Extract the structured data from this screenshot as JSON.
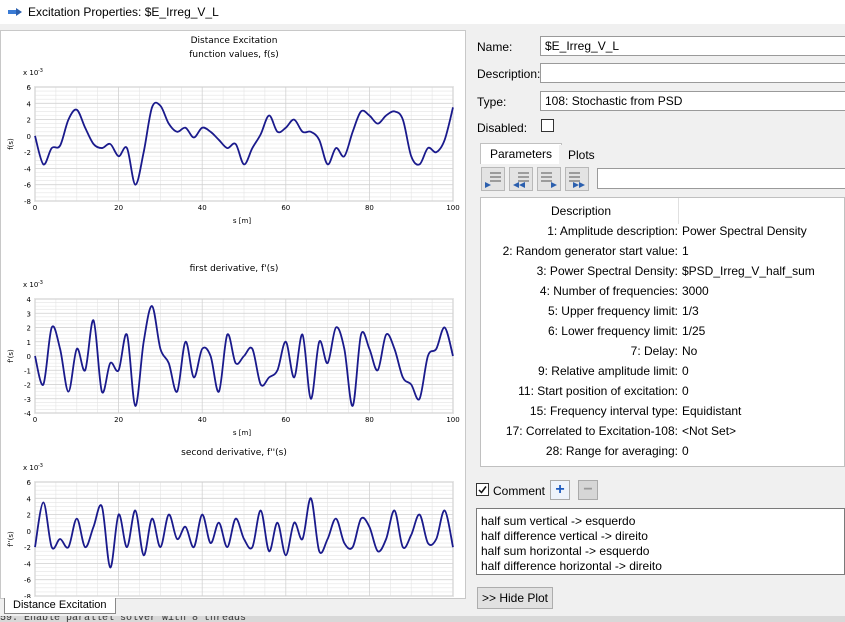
{
  "window": {
    "title": "Excitation Properties: $E_Irreg_V_L"
  },
  "form": {
    "name_label": "Name:",
    "name_value": "$E_Irreg_V_L",
    "description_label": "Description:",
    "description_value": "",
    "type_label": "Type:",
    "type_value": "108: Stochastic from PSD",
    "disabled_label": "Disabled:"
  },
  "tabs": [
    {
      "label": "Parameters"
    },
    {
      "label": "Plots"
    }
  ],
  "params": {
    "header": "Description",
    "rows": [
      {
        "name": "1: Amplitude description:",
        "value": "Power Spectral Density"
      },
      {
        "name": "2: Random generator start value:",
        "value": "1"
      },
      {
        "name": "3: Power Spectral Density:",
        "value": "$PSD_Irreg_V_half_sum"
      },
      {
        "name": "4: Number of frequencies:",
        "value": "3000"
      },
      {
        "name": "5: Upper frequency limit:",
        "value": "1/3"
      },
      {
        "name": "6: Lower frequency limit:",
        "value": "1/25"
      },
      {
        "name": "7: Delay:",
        "value": "No"
      },
      {
        "name": "9: Relative amplitude limit:",
        "value": "0"
      },
      {
        "name": "11: Start position of excitation:",
        "value": "0"
      },
      {
        "name": "15: Frequency interval type:",
        "value": "Equidistant"
      },
      {
        "name": "17: Correlated to Excitation-108:",
        "value": "<Not Set>"
      },
      {
        "name": "28: Range for averaging:",
        "value": "0"
      }
    ]
  },
  "comment": {
    "label": "Comment",
    "checked": true,
    "lines": [
      "half sum vertical -> esquerdo",
      "half difference vertical -> direito",
      "half sum horizontal -> esquerdo",
      "half difference horizontal -> direito"
    ]
  },
  "hide_plot_label": ">> Hide Plot",
  "plot_tab_label": "Distance Excitation",
  "console_text": "59:    Enable parallel solver with 8 threads",
  "chart_data": [
    {
      "type": "line",
      "title": "Distance Excitation",
      "subtitle": "function values, f(s)",
      "xlabel": "s [m]",
      "ylabel": "f(s)",
      "yscale_label": "x 10",
      "yscale_exp": "-3",
      "xlim": [
        0,
        100
      ],
      "ylim": [
        -8,
        6
      ],
      "xticks": [
        0,
        20,
        40,
        60,
        80,
        100
      ],
      "yticks": [
        -8,
        -6,
        -4,
        -2,
        0,
        2,
        4,
        6
      ],
      "grid": true,
      "series": [
        {
          "x": [
            0,
            2,
            4,
            6,
            8,
            10,
            12,
            14,
            16,
            18,
            20,
            22,
            24,
            26,
            28,
            30,
            32,
            34,
            36,
            38,
            40,
            42,
            44,
            46,
            48,
            50,
            52,
            54,
            56,
            58,
            60,
            62,
            64,
            66,
            68,
            70,
            72,
            74,
            76,
            78,
            80,
            82,
            84,
            86,
            88,
            90,
            92,
            94,
            96,
            98,
            100
          ],
          "values": [
            0,
            -3.5,
            -1.5,
            -1.2,
            2,
            3.2,
            1,
            -1,
            -1.5,
            -1,
            -2.5,
            -1.5,
            -6,
            -2,
            3.5,
            3.7,
            1.5,
            0.5,
            1,
            -0.2,
            1,
            0.5,
            -0.5,
            -1.5,
            -1,
            -3.5,
            -1.5,
            0.2,
            2.5,
            0.5,
            1,
            2,
            0.5,
            0.5,
            -0.5,
            -3.5,
            -1.5,
            -2.5,
            0.5,
            3,
            2.5,
            1.5,
            2.5,
            3,
            2,
            -2.5,
            -3.5,
            -1.5,
            -2,
            -0.5,
            3.5
          ]
        }
      ]
    },
    {
      "type": "line",
      "subtitle": "first derivative, f'(s)",
      "xlabel": "s [m]",
      "ylabel": "f'(s)",
      "yscale_label": "x 10",
      "yscale_exp": "-3",
      "xlim": [
        0,
        100
      ],
      "ylim": [
        -4,
        4
      ],
      "xticks": [
        0,
        20,
        40,
        60,
        80,
        100
      ],
      "yticks": [
        -4,
        -3,
        -2,
        -1,
        0,
        1,
        2,
        3,
        4
      ],
      "grid": true,
      "series": [
        {
          "x": [
            0,
            2,
            4,
            6,
            8,
            10,
            12,
            14,
            16,
            18,
            20,
            22,
            24,
            26,
            28,
            30,
            32,
            34,
            36,
            38,
            40,
            42,
            44,
            46,
            48,
            50,
            52,
            54,
            56,
            58,
            60,
            62,
            64,
            66,
            68,
            70,
            72,
            74,
            76,
            78,
            80,
            82,
            84,
            86,
            88,
            90,
            92,
            94,
            96,
            98,
            100
          ],
          "values": [
            0,
            -2,
            2,
            0.5,
            -2.5,
            0.5,
            -1,
            2.5,
            -2.5,
            -0.5,
            -1,
            1.5,
            -3.5,
            1,
            3.5,
            0.5,
            -0.5,
            -2.5,
            1,
            -1.5,
            0.5,
            0,
            -2.5,
            1.5,
            -0.5,
            0,
            0.5,
            -2,
            -1.5,
            -1,
            1,
            -1.5,
            1.5,
            -3,
            1,
            -0.5,
            2,
            0.5,
            -3.5,
            1.5,
            0.5,
            -1,
            1.5,
            0.5,
            -1.5,
            -2,
            -3,
            0,
            0.5,
            2,
            0
          ]
        }
      ]
    },
    {
      "type": "line",
      "subtitle": "second derivative, f''(s)",
      "xlabel": "s [m]",
      "ylabel": "f''(s)",
      "yscale_label": "x 10",
      "yscale_exp": "-3",
      "xlim": [
        0,
        100
      ],
      "ylim": [
        -8,
        6
      ],
      "xticks": [
        0,
        20,
        40,
        60,
        80,
        100
      ],
      "yticks": [
        -8,
        -6,
        -4,
        -2,
        0,
        2,
        4,
        6
      ],
      "grid": true,
      "series": [
        {
          "x": [
            0,
            2,
            4,
            6,
            8,
            10,
            12,
            14,
            16,
            18,
            20,
            22,
            24,
            26,
            28,
            30,
            32,
            34,
            36,
            38,
            40,
            42,
            44,
            46,
            48,
            50,
            52,
            54,
            56,
            58,
            60,
            62,
            64,
            66,
            68,
            70,
            72,
            74,
            76,
            78,
            80,
            82,
            84,
            86,
            88,
            90,
            92,
            94,
            96,
            98,
            100
          ],
          "values": [
            -2,
            3.5,
            -2,
            -1,
            -2,
            1.5,
            -2,
            0.5,
            3,
            -4.5,
            2,
            -2,
            2.5,
            -3,
            1.5,
            -2,
            2,
            -1,
            0.5,
            -2,
            2,
            -1.5,
            1,
            -2,
            1.5,
            -1,
            -2,
            2.5,
            -2.5,
            1,
            -3,
            1,
            -1,
            4,
            -2.5,
            -1,
            1.5,
            -1.5,
            -2,
            1.5,
            0.5,
            -2.5,
            -1,
            2.5,
            -2,
            -0.5,
            2,
            -1.5,
            -1,
            2.5,
            -2
          ]
        }
      ]
    }
  ]
}
